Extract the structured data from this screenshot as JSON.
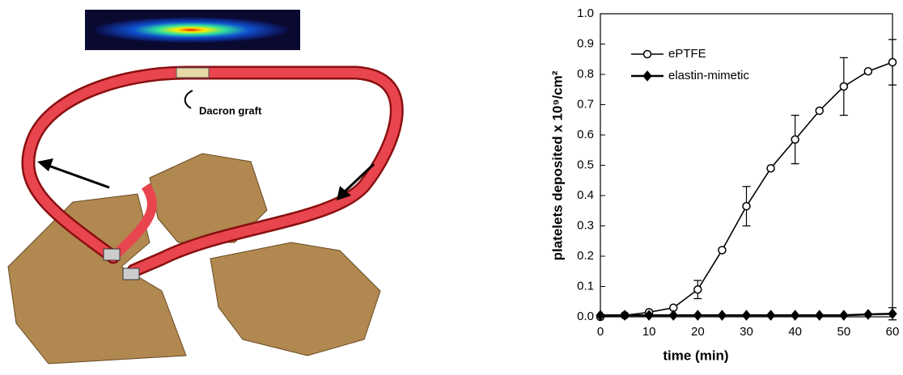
{
  "illustration": {
    "label": "Dacron graft"
  },
  "chart_data": {
    "type": "line",
    "xlabel": "time (min)",
    "ylabel": "platelets deposited x 10⁹/cm²",
    "x": [
      0,
      5,
      10,
      15,
      20,
      25,
      30,
      35,
      40,
      45,
      50,
      55,
      60
    ],
    "series": [
      {
        "name": "ePTFE",
        "color": "#000000",
        "marker": "circle",
        "values": [
          0.0,
          0.005,
          0.015,
          0.03,
          0.09,
          0.22,
          0.365,
          0.49,
          0.585,
          0.68,
          0.76,
          0.81,
          0.84
        ],
        "errors": [
          null,
          null,
          null,
          null,
          0.03,
          null,
          0.065,
          null,
          0.08,
          null,
          0.095,
          null,
          0.075
        ]
      },
      {
        "name": "elastin-mimetic",
        "color": "#000000",
        "marker": "diamond",
        "values": [
          0.005,
          0.005,
          0.005,
          0.005,
          0.005,
          0.005,
          0.005,
          0.005,
          0.005,
          0.005,
          0.005,
          0.008,
          0.01
        ],
        "errors": [
          null,
          null,
          null,
          null,
          null,
          null,
          null,
          null,
          null,
          null,
          null,
          null,
          0.02
        ]
      }
    ],
    "xlim": [
      0,
      60
    ],
    "xticks": [
      0,
      10,
      20,
      30,
      40,
      50,
      60
    ],
    "ylim": [
      0,
      1.0
    ],
    "yticks": [
      {
        "value": 0,
        "label": "0.0"
      },
      0.1,
      0.2,
      0.3,
      0.4,
      0.5,
      0.6,
      0.7,
      0.8,
      0.9,
      {
        "value": 1,
        "label": "1.0"
      }
    ],
    "legend": "upper left",
    "grid": false
  }
}
